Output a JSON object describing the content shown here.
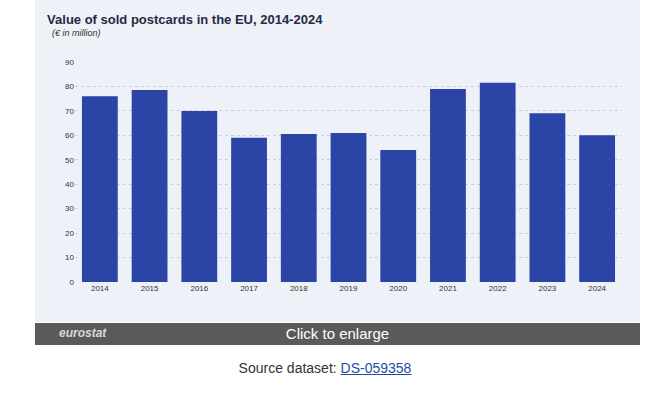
{
  "chart_data": {
    "type": "bar",
    "title": "Value of sold postcards in the EU, 2014-2024",
    "subtitle": "(€ in million)",
    "categories": [
      "2014",
      "2015",
      "2016",
      "2017",
      "2018",
      "2019",
      "2020",
      "2021",
      "2022",
      "2023",
      "2024"
    ],
    "values": [
      76,
      78.5,
      70,
      59,
      60.5,
      61,
      54,
      79,
      81.5,
      69,
      60
    ],
    "color": "#2b45a6",
    "ylim": [
      0,
      90
    ],
    "yticks": [
      0,
      10,
      20,
      30,
      40,
      50,
      60,
      70,
      80,
      90
    ],
    "grid": true
  },
  "footer": {
    "logo": "eurostat",
    "button": "Click to enlarge",
    "source_label": "Source dataset:",
    "source_id": "DS-059358"
  }
}
